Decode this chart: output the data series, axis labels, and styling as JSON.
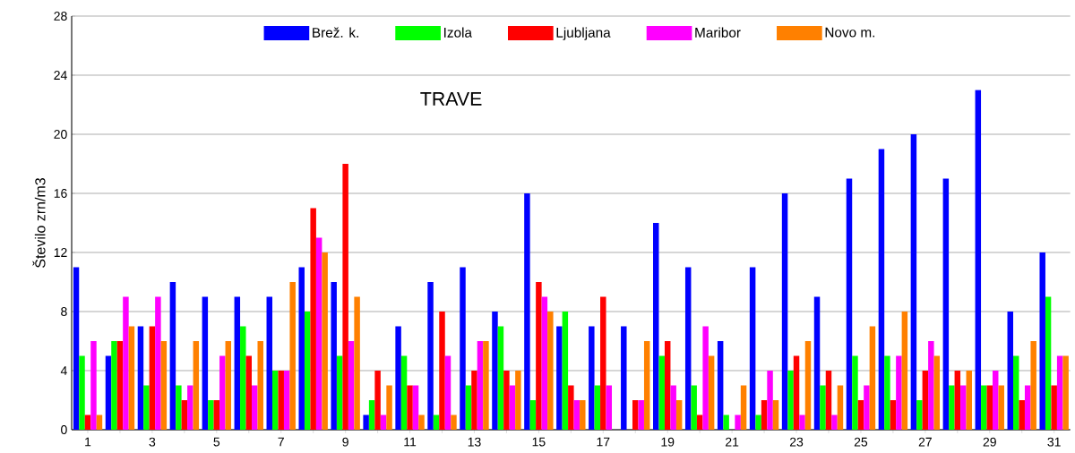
{
  "chart_data": {
    "type": "bar",
    "title": "TRAVE",
    "ylabel": "Število zrn/m3",
    "categories": [
      "1",
      null,
      "3",
      null,
      "5",
      null,
      "7",
      null,
      "9",
      null,
      "11",
      null,
      "13",
      null,
      "15",
      null,
      "17",
      null,
      "19",
      null,
      "21",
      null,
      "23",
      null,
      "25",
      null,
      "27",
      null,
      "29",
      null,
      "31"
    ],
    "series": [
      {
        "name": "Brež. k.",
        "color": "#0000ff",
        "values": [
          11,
          5,
          7,
          10,
          9,
          9,
          9,
          11,
          10,
          1,
          7,
          10,
          11,
          8,
          16,
          7,
          7,
          7,
          14,
          11,
          6,
          11,
          16,
          9,
          17,
          19,
          20,
          17,
          23,
          8,
          12
        ]
      },
      {
        "name": "Izola",
        "color": "#00ff00",
        "values": [
          5,
          6,
          3,
          3,
          2,
          7,
          4,
          8,
          5,
          2,
          5,
          1,
          3,
          7,
          2,
          8,
          3,
          0,
          5,
          3,
          1,
          1,
          4,
          3,
          5,
          5,
          2,
          3,
          3,
          5,
          9
        ]
      },
      {
        "name": "Ljubljana",
        "color": "#ff0000",
        "values": [
          1,
          6,
          7,
          2,
          2,
          5,
          4,
          15,
          18,
          4,
          3,
          8,
          4,
          4,
          10,
          3,
          9,
          2,
          6,
          1,
          0,
          2,
          5,
          4,
          2,
          2,
          4,
          4,
          3,
          2,
          3
        ]
      },
      {
        "name": "Maribor",
        "color": "#ff00ff",
        "values": [
          6,
          9,
          9,
          3,
          5,
          3,
          4,
          13,
          6,
          1,
          3,
          5,
          6,
          3,
          9,
          2,
          3,
          2,
          3,
          7,
          1,
          4,
          1,
          1,
          3,
          5,
          6,
          3,
          4,
          3,
          5
        ]
      },
      {
        "name": "Novo m.",
        "color": "#ff8000",
        "values": [
          1,
          7,
          6,
          6,
          6,
          6,
          10,
          12,
          9,
          3,
          1,
          1,
          6,
          4,
          8,
          2,
          0,
          6,
          2,
          5,
          3,
          2,
          6,
          3,
          7,
          8,
          5,
          4,
          3,
          6,
          5
        ]
      }
    ],
    "ylim": [
      0,
      28
    ],
    "yticks": [
      0,
      4,
      8,
      12,
      16,
      20,
      24,
      28
    ],
    "grid": "y",
    "legend": "top"
  }
}
